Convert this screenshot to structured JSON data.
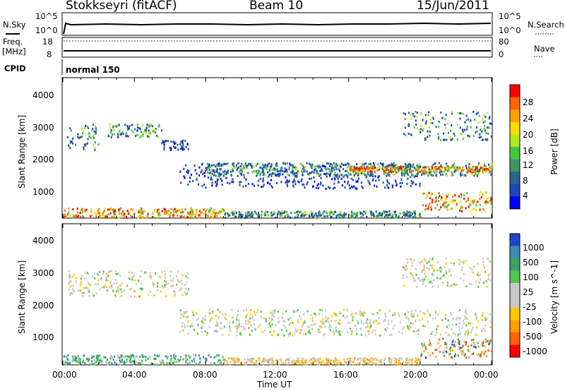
{
  "header": {
    "station": "Stokkseyri (fitACF)",
    "beam": "Beam 10",
    "date": "15/Jun/2011"
  },
  "strip": {
    "nsky_label": "N.Sky",
    "nsky_ticks": [
      "10^5",
      "10^0"
    ],
    "nsearch_label": "N.Search",
    "nsearch_ticks": [
      "10^5",
      "10^0"
    ],
    "freq_label": "Freq.",
    "freq_unit": "[MHz]",
    "freq_ticks": [
      "18",
      "8"
    ],
    "nave_label": "Nave",
    "nave_ticks": [
      "80",
      "0"
    ],
    "cpid_label": "CPID",
    "cpid_value": "normal 150"
  },
  "x_axis": {
    "ticks": [
      "00:00",
      "04:00",
      "08:00",
      "12:00",
      "16:00",
      "20:00",
      "00:00"
    ],
    "label": "Time UT"
  },
  "chart_data": [
    {
      "type": "heatmap",
      "quantity": "Power",
      "colorbar_label": "Power [dB]",
      "colorbar_ticks": [
        "28",
        "24",
        "20",
        "16",
        "12",
        "8",
        "4"
      ],
      "colorbar_colors": [
        "#ff0000",
        "#ff6400",
        "#ffa000",
        "#ffdc00",
        "#b4e61e",
        "#46c83c",
        "#3c9664",
        "#28648c",
        "#1e46b4",
        "#0000ff"
      ],
      "ylabel": "Slant Range [km]",
      "yticks": [
        "4000",
        "3000",
        "2000",
        "1000"
      ],
      "ylim": [
        180,
        4500
      ],
      "xlim_hours": [
        0,
        24
      ],
      "bands": [
        {
          "t0": 0.0,
          "t1": 9.0,
          "r0": 200,
          "r1": 500,
          "level": "high"
        },
        {
          "t0": 9.0,
          "t1": 20.0,
          "r0": 200,
          "r1": 400,
          "level": "mid"
        },
        {
          "t0": 0.2,
          "t1": 2.0,
          "r0": 2300,
          "r1": 3100,
          "level": "mid"
        },
        {
          "t0": 2.5,
          "t1": 5.5,
          "r0": 2700,
          "r1": 3100,
          "level": "mid"
        },
        {
          "t0": 5.5,
          "t1": 7.0,
          "r0": 2300,
          "r1": 2600,
          "level": "low"
        },
        {
          "t0": 6.5,
          "t1": 20.0,
          "r0": 1100,
          "r1": 1900,
          "level": "low"
        },
        {
          "t0": 8.0,
          "t1": 24.0,
          "r0": 1500,
          "r1": 1900,
          "level": "mid"
        },
        {
          "t0": 16.0,
          "t1": 24.0,
          "r0": 1600,
          "r1": 1800,
          "level": "high"
        },
        {
          "t0": 19.0,
          "t1": 24.0,
          "r0": 2600,
          "r1": 3500,
          "level": "mid"
        },
        {
          "t0": 20.0,
          "t1": 24.0,
          "r0": 400,
          "r1": 1000,
          "level": "high"
        }
      ]
    },
    {
      "type": "heatmap",
      "quantity": "Velocity",
      "colorbar_label": "Velocity [m s^-1]",
      "colorbar_ticks": [
        "1000",
        "500",
        "100",
        "25",
        "-25",
        "-100",
        "-500",
        "-1000"
      ],
      "colorbar_colors": [
        "#1e46c8",
        "#3c8cb4",
        "#3ca064",
        "#50c850",
        "#c8c8c8",
        "#c8c8c8",
        "#ffc800",
        "#ffa000",
        "#ff6400",
        "#ff0000"
      ],
      "ylabel": "Slant Range [km]",
      "yticks": [
        "4000",
        "3000",
        "2000",
        "1000"
      ],
      "ylim": [
        180,
        4500
      ],
      "xlim_hours": [
        0,
        24
      ],
      "bands": [
        {
          "t0": 0.0,
          "t1": 9.0,
          "r0": 200,
          "r1": 500,
          "level": "pos"
        },
        {
          "t0": 9.0,
          "t1": 20.0,
          "r0": 200,
          "r1": 400,
          "level": "neg"
        },
        {
          "t0": 0.2,
          "t1": 7.0,
          "r0": 2300,
          "r1": 3100,
          "level": "zero"
        },
        {
          "t0": 6.5,
          "t1": 24.0,
          "r0": 1100,
          "r1": 1900,
          "level": "zero"
        },
        {
          "t0": 19.0,
          "t1": 24.0,
          "r0": 2600,
          "r1": 3500,
          "level": "zero"
        },
        {
          "t0": 20.0,
          "t1": 24.0,
          "r0": 400,
          "r1": 1000,
          "level": "mix"
        }
      ]
    }
  ]
}
